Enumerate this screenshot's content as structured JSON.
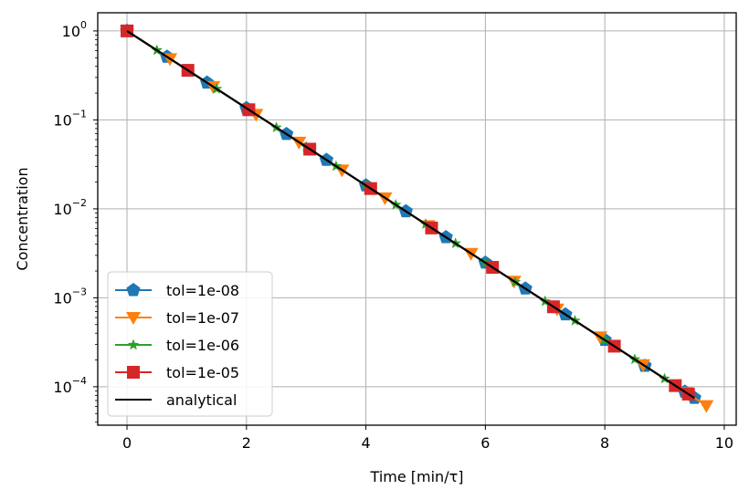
{
  "chart_data": {
    "type": "line",
    "xlabel": "Time [min/τ]",
    "ylabel": "Concentration",
    "xlim": [
      -0.49,
      10.2
    ],
    "ylim": [
      3.7e-05,
      1.6
    ],
    "yscale": "log",
    "grid": true,
    "legend_position": "lower-left",
    "x_ticks": [
      {
        "value": 0,
        "label": "0"
      },
      {
        "value": 2,
        "label": "2"
      },
      {
        "value": 4,
        "label": "4"
      },
      {
        "value": 6,
        "label": "6"
      },
      {
        "value": 8,
        "label": "8"
      },
      {
        "value": 10,
        "label": "10"
      }
    ],
    "y_ticks": [
      {
        "value": 1,
        "base": "10",
        "exp": "0"
      },
      {
        "value": 0.1,
        "base": "10",
        "exp": "−1"
      },
      {
        "value": 0.01,
        "base": "10",
        "exp": "−2"
      },
      {
        "value": 0.001,
        "base": "10",
        "exp": "−3"
      },
      {
        "value": 0.0001,
        "base": "10",
        "exp": "−4"
      }
    ],
    "series": [
      {
        "name": "tol=1e-08",
        "color": "#1f77b4",
        "marker": "pentagon",
        "x": [
          0.0,
          0.67,
          1.34,
          2.0,
          2.67,
          3.34,
          4.0,
          4.67,
          5.34,
          6.0,
          6.67,
          7.34,
          8.0,
          8.67,
          9.34,
          9.5
        ]
      },
      {
        "name": "tol=1e-07",
        "color": "#ff7f0e",
        "marker": "triangle-down",
        "x": [
          0.0,
          0.72,
          1.44,
          2.16,
          2.88,
          3.6,
          4.32,
          5.04,
          5.76,
          6.48,
          7.2,
          7.92,
          8.64,
          9.36,
          9.7
        ]
      },
      {
        "name": "tol=1e-06",
        "color": "#2ca02c",
        "marker": "star",
        "x": [
          0.0,
          0.5,
          1.0,
          1.5,
          2.0,
          2.5,
          3.0,
          3.5,
          4.0,
          4.5,
          5.0,
          5.5,
          6.0,
          6.5,
          7.0,
          7.5,
          8.0,
          8.5,
          9.0,
          9.4
        ]
      },
      {
        "name": "tol=1e-05",
        "color": "#d62728",
        "marker": "square",
        "x": [
          0.0,
          1.02,
          2.04,
          3.06,
          4.08,
          5.1,
          6.12,
          7.14,
          8.16,
          9.18,
          9.4
        ]
      },
      {
        "name": "analytical",
        "color": "#000000",
        "marker": "none",
        "x": [
          0.0,
          9.5
        ]
      }
    ],
    "y_function": "exp(-x)"
  }
}
